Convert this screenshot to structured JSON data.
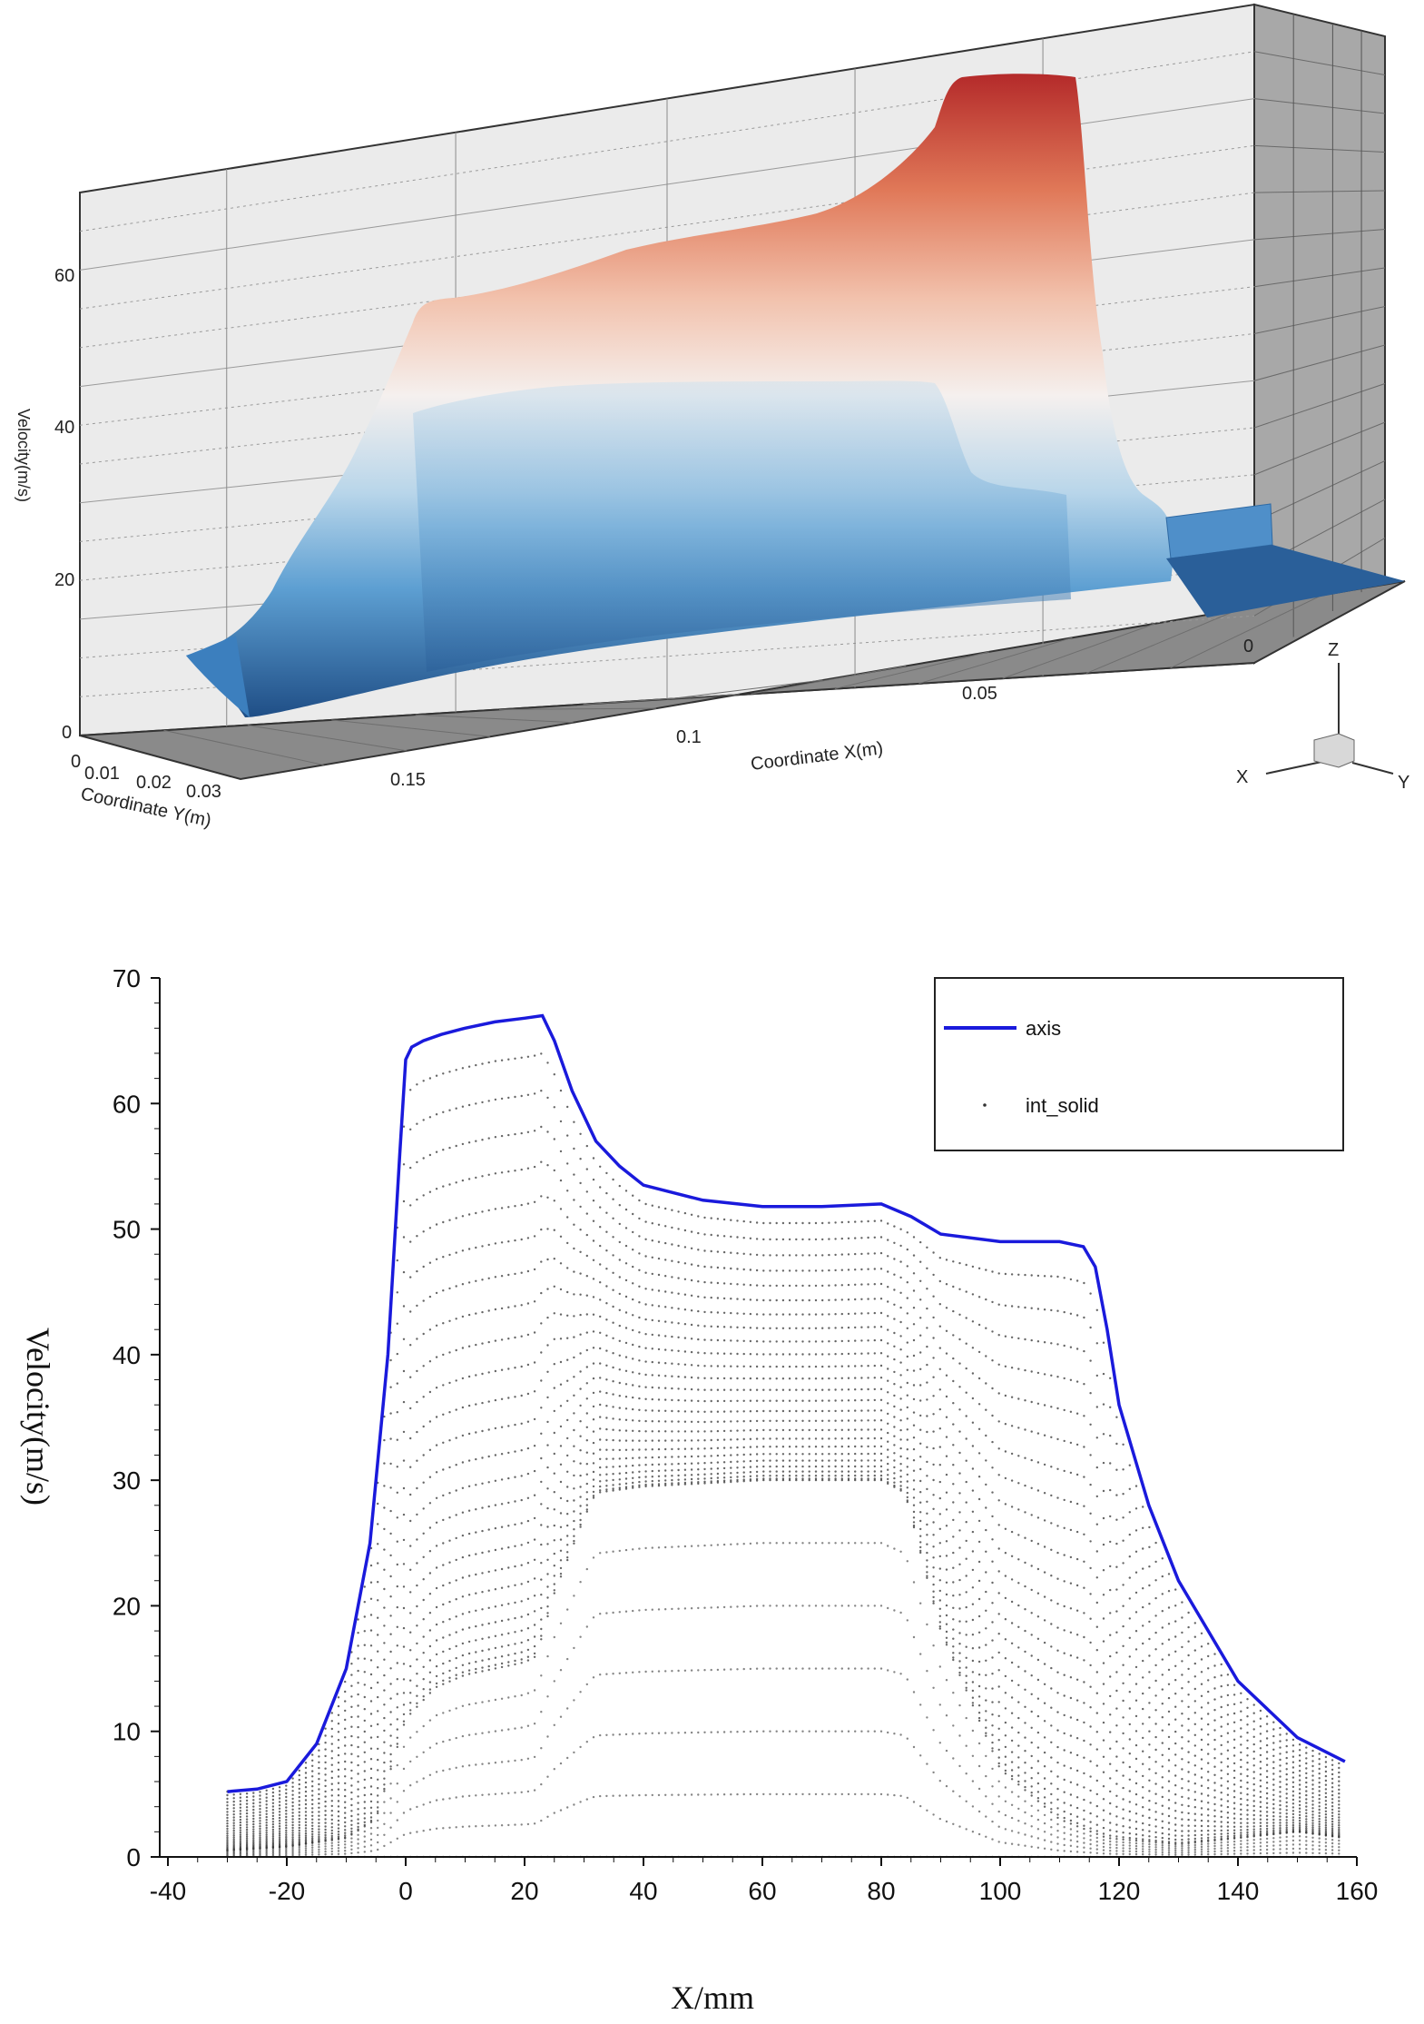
{
  "chart_data": [
    {
      "type": "surface",
      "zlabel": "Velocity(m/s)",
      "xlabel": "Coordinate X(m)",
      "ylabel": "Coordinate Y(m)",
      "z_ticks": [
        "0",
        "20",
        "40",
        "60"
      ],
      "x_ticks": [
        "0.15",
        "0.1",
        "0.05",
        "0"
      ],
      "y_ticks": [
        "0",
        "0.01",
        "0.02",
        "0.03"
      ],
      "zlim": [
        0,
        70
      ],
      "colors": {
        "low": "#1f4e86",
        "mid": "#f5f0ee",
        "high": "#b42a2a"
      },
      "triad": {
        "x": "X",
        "y": "Y",
        "z": "Z"
      }
    },
    {
      "type": "line",
      "xlabel": "X/mm",
      "ylabel": "Velocity(m/s)",
      "xlim": [
        -40,
        160
      ],
      "ylim": [
        0,
        70
      ],
      "x_ticks": [
        "-40",
        "-20",
        "0",
        "20",
        "40",
        "60",
        "80",
        "100",
        "120",
        "140",
        "160"
      ],
      "y_ticks": [
        "0",
        "10",
        "20",
        "30",
        "40",
        "50",
        "60",
        "70"
      ],
      "legend_position": "top-right",
      "series": [
        {
          "name": "axis",
          "color": "#1a1adc",
          "x": [
            -30,
            -25,
            -20,
            -15,
            -10,
            -6,
            -3,
            -1,
            0,
            1,
            3,
            6,
            10,
            15,
            20,
            23,
            25,
            28,
            32,
            36,
            40,
            50,
            60,
            70,
            80,
            85,
            90,
            100,
            110,
            114,
            116,
            118,
            120,
            125,
            130,
            140,
            150,
            158
          ],
          "y": [
            5.2,
            5.4,
            6.0,
            9.0,
            15.0,
            25.0,
            40.0,
            56.0,
            63.5,
            64.5,
            65.0,
            65.5,
            66.0,
            66.5,
            66.8,
            67.0,
            65.0,
            61.0,
            57.0,
            55.0,
            53.5,
            52.3,
            51.8,
            51.8,
            52.0,
            51.0,
            49.6,
            49.0,
            49.0,
            48.6,
            47.0,
            42.0,
            36.0,
            28.0,
            22.0,
            14.0,
            9.5,
            7.6
          ]
        },
        {
          "name": "int_solid",
          "color": "#333333",
          "marker": "dot",
          "x": [
            -30,
            -20,
            -10,
            -5,
            0,
            5,
            10,
            15,
            20,
            22,
            25,
            30,
            32,
            40,
            60,
            80,
            84,
            90,
            100,
            110,
            118,
            130,
            140,
            150,
            158
          ],
          "y": [
            0.5,
            0.8,
            1.5,
            3.0,
            11.0,
            13.5,
            14.5,
            15.0,
            15.5,
            16.0,
            21.0,
            27.0,
            29.0,
            29.5,
            30.0,
            30.0,
            29.0,
            18.0,
            7.0,
            3.0,
            1.5,
            1.0,
            1.5,
            2.0,
            1.5
          ]
        }
      ]
    }
  ]
}
